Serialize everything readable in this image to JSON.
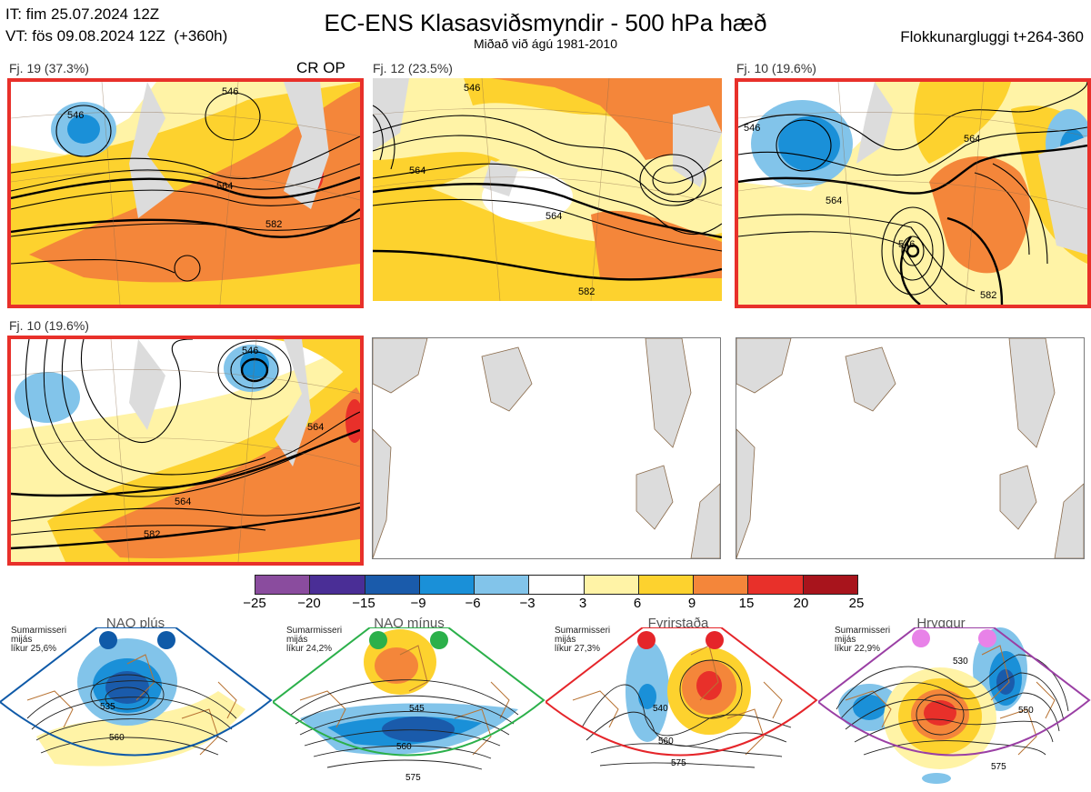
{
  "header": {
    "init_time": "IT: fim 25.07.2024 12Z",
    "valid_time": "VT: fös 09.08.2024 12Z  (+360h)",
    "title": "EC-ENS Klasasviðsmyndir - 500 hPa hæð",
    "subtitle": "Miðað við ágú 1981-2010",
    "window": "Flokkunargluggi t+264-360"
  },
  "panels": [
    {
      "label": "Fj. 19 (37.3%)",
      "tag": "CR OP",
      "selected": true,
      "contours": [
        "546",
        "564",
        "582",
        "546"
      ]
    },
    {
      "label": "Fj. 12 (23.5%)",
      "tag": "",
      "selected": false,
      "contours": [
        "546",
        "564",
        "564",
        "582"
      ]
    },
    {
      "label": "Fj. 10 (19.6%)",
      "tag": "",
      "selected": false,
      "contours": [
        "546",
        "564",
        "564",
        "546",
        "582"
      ]
    },
    {
      "label": "Fj. 10 (19.6%)",
      "tag": "",
      "selected": false,
      "contours": [
        "546",
        "564",
        "564",
        "582"
      ]
    },
    {
      "label": "",
      "selected": false
    },
    {
      "label": "",
      "selected": false
    }
  ],
  "colorbar": {
    "colors": [
      "#8a4c9e",
      "#4a2e96",
      "#1a5bab",
      "#1a90d8",
      "#82c4ea",
      "#ffffff",
      "#fff3a6",
      "#fdd22e",
      "#f4863a",
      "#e8302a",
      "#a8141c"
    ],
    "ticks": [
      "−25",
      "−20",
      "−15",
      "−9",
      "−6",
      "−3",
      "3",
      "6",
      "9",
      "15",
      "20",
      "25"
    ]
  },
  "regimes": [
    {
      "name": "NAO plús",
      "note": "Sumarmisseri\nmijás\nlíkur 25,6%",
      "color": "#0f5aa8",
      "contours": [
        "535",
        "560"
      ]
    },
    {
      "name": "NAO mínus",
      "note": "Sumarmisseri\nmijás\nlíkur 24,2%",
      "color": "#2bb04a",
      "contours": [
        "545",
        "560",
        "575"
      ]
    },
    {
      "name": "Fyrirstaða",
      "note": "Sumarmisseri\nmijás\nlíkur 27,3%",
      "color": "#e5252a",
      "contours": [
        "540",
        "560",
        "575"
      ]
    },
    {
      "name": "Hryggur",
      "note": "Sumarmisseri\nmijás\nlíkur 22,9%",
      "color": "#e882e8",
      "contours": [
        "530",
        "550",
        "575"
      ]
    }
  ]
}
